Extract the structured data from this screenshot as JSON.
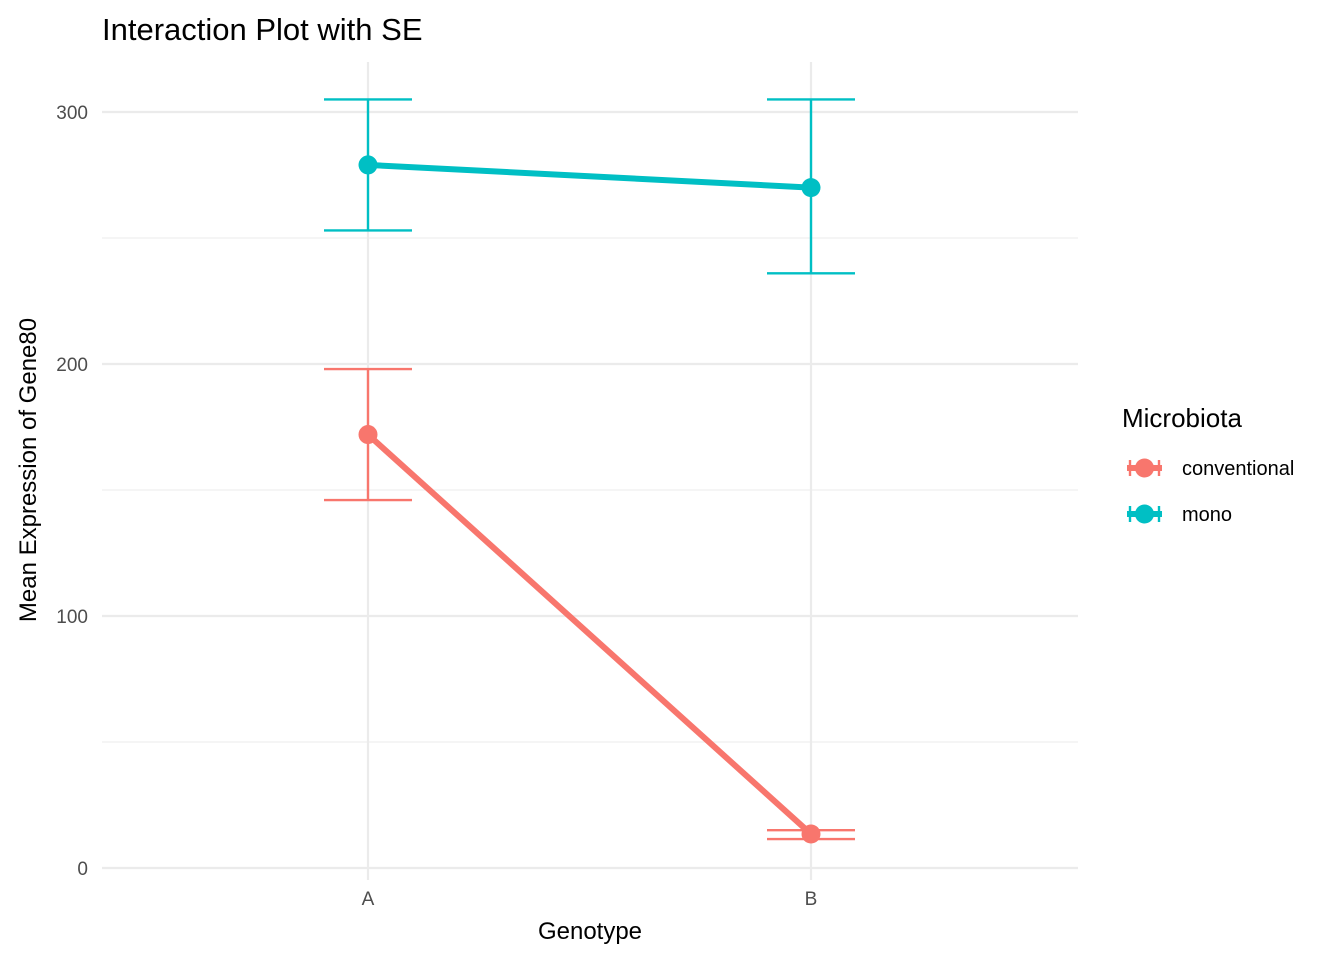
{
  "chart_data": {
    "type": "line",
    "title": "Interaction Plot with SE",
    "xlabel": "Genotype",
    "ylabel": "Mean Expression of Gene80",
    "categories": [
      "A",
      "B"
    ],
    "ylim": [
      0,
      320
    ],
    "yticks": [
      0,
      100,
      200,
      300
    ],
    "yminor": [
      50,
      150,
      250
    ],
    "grid": true,
    "legend": {
      "title": "Microbiota",
      "position": "right"
    },
    "series": [
      {
        "name": "conventional",
        "color": "#F8766D",
        "values": [
          172,
          13.5
        ],
        "se_lower": [
          146,
          11.5
        ],
        "se_upper": [
          198,
          15
        ]
      },
      {
        "name": "mono",
        "color": "#00BFC4",
        "values": [
          279,
          270
        ],
        "se_lower": [
          253,
          236
        ],
        "se_upper": [
          305,
          305
        ]
      }
    ]
  }
}
